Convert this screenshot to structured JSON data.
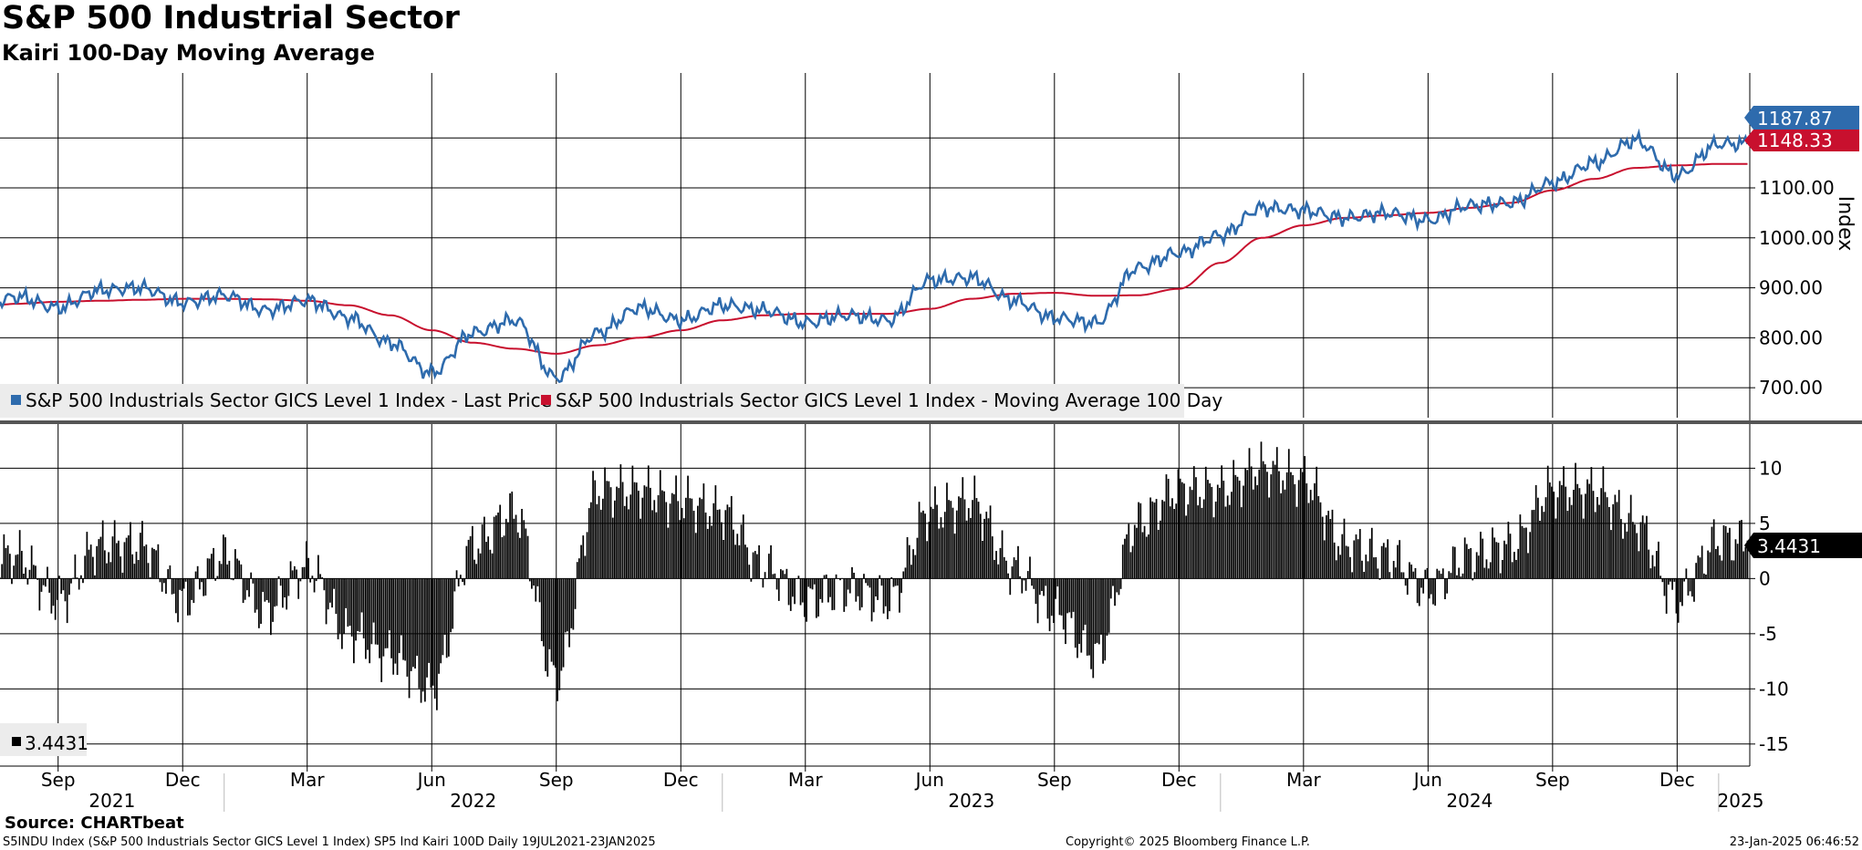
{
  "header": {
    "title": "S&P 500 Industrial Sector",
    "subtitle": "Kairi 100-Day Moving Average"
  },
  "footer": {
    "source": "Source: CHARTbeat",
    "ticker_line": "S5INDU Index (S&P 500 Industrials Sector GICS Level 1 Index) SP5 Ind Kairi 100D  Daily 19JUL2021-23JAN2025",
    "copyright": "Copyright© 2025 Bloomberg Finance L.P.",
    "timestamp": "23-Jan-2025 06:46:52"
  },
  "colors": {
    "price": "#2e6bad",
    "ma": "#c8102e",
    "kairi": "#000000",
    "grid": "#000000"
  },
  "chart_data": [
    {
      "type": "line",
      "title": "S&P 500 Industrial Sector",
      "ylabel": "Index",
      "ylim": [
        640,
        1330
      ],
      "yticks": [
        "700.00",
        "800.00",
        "900.00",
        "1000.00",
        "1100.00"
      ],
      "x_month_labels": [
        "Sep",
        "Dec",
        "Mar",
        "Jun",
        "Sep",
        "Dec",
        "Mar",
        "Jun",
        "Sep",
        "Dec",
        "Mar",
        "Jun",
        "Sep",
        "Dec"
      ],
      "x_year_labels": [
        "2021",
        "2022",
        "2023",
        "2024",
        "2025"
      ],
      "legend": [
        "S&P 500 Industrials Sector GICS Level 1 Index - Last Price",
        "S&P 500 Industrials Sector GICS Level 1 Index - Moving Average 100 Day"
      ],
      "last_values": {
        "price": "1187.87",
        "ma": "1148.33"
      },
      "x": [
        "2021-07",
        "2021-08",
        "2021-09",
        "2021-10",
        "2021-11",
        "2021-12",
        "2022-01",
        "2022-02",
        "2022-03",
        "2022-04",
        "2022-05",
        "2022-06",
        "2022-07",
        "2022-08",
        "2022-09",
        "2022-10",
        "2022-11",
        "2022-12",
        "2023-01",
        "2023-02",
        "2023-03",
        "2023-04",
        "2023-05",
        "2023-06",
        "2023-07",
        "2023-08",
        "2023-09",
        "2023-10",
        "2023-11",
        "2023-12",
        "2024-01",
        "2024-02",
        "2024-03",
        "2024-04",
        "2024-05",
        "2024-06",
        "2024-07",
        "2024-08",
        "2024-09",
        "2024-10",
        "2024-11",
        "2024-12",
        "2025-01"
      ],
      "series": [
        {
          "name": "S&P 500 Industrials Sector GICS Level 1 Index - Last Price",
          "values": [
            855,
            882,
            860,
            895,
            900,
            870,
            885,
            855,
            875,
            840,
            790,
            730,
            810,
            835,
            720,
            810,
            860,
            835,
            865,
            855,
            830,
            845,
            835,
            915,
            920,
            875,
            840,
            830,
            940,
            970,
            1005,
            1060,
            1055,
            1040,
            1050,
            1035,
            1065,
            1070,
            1110,
            1150,
            1195,
            1125,
            1188
          ]
        },
        {
          "name": "S&P 500 Industrials Sector GICS Level 1 Index - Moving Average 100 Day",
          "values": [
            860,
            868,
            872,
            874,
            876,
            878,
            878,
            877,
            874,
            865,
            845,
            815,
            790,
            778,
            768,
            785,
            800,
            815,
            835,
            845,
            848,
            848,
            848,
            858,
            878,
            888,
            890,
            884,
            885,
            898,
            950,
            1000,
            1025,
            1040,
            1045,
            1050,
            1060,
            1070,
            1095,
            1118,
            1140,
            1145,
            1148
          ]
        }
      ]
    },
    {
      "type": "bar",
      "title": "Kairi 100-Day Moving Average",
      "ylim": [
        -17,
        14
      ],
      "yticks": [
        "10",
        "5",
        "0",
        "-5",
        "-10",
        "-15"
      ],
      "last_value": "3.4431",
      "legend": [
        "3.4431"
      ],
      "x": [
        "2021-07",
        "2021-08",
        "2021-09",
        "2021-10",
        "2021-11",
        "2021-12",
        "2022-01",
        "2022-02",
        "2022-03",
        "2022-04",
        "2022-05",
        "2022-06",
        "2022-07",
        "2022-08",
        "2022-09",
        "2022-10",
        "2022-11",
        "2022-12",
        "2023-01",
        "2023-02",
        "2023-03",
        "2023-04",
        "2023-05",
        "2023-06",
        "2023-07",
        "2023-08",
        "2023-09",
        "2023-10",
        "2023-11",
        "2023-12",
        "2024-01",
        "2024-02",
        "2024-03",
        "2024-04",
        "2024-05",
        "2024-06",
        "2024-07",
        "2024-08",
        "2024-09",
        "2024-10",
        "2024-11",
        "2024-12",
        "2025-01"
      ],
      "values": [
        2,
        2,
        -2,
        3,
        3,
        -2,
        2,
        -3,
        1,
        -5,
        -7,
        -10,
        3,
        6,
        -9,
        8,
        8,
        7,
        6,
        1,
        -2,
        -1,
        -2,
        6,
        7,
        1,
        -3,
        -7,
        5,
        8,
        8,
        10,
        9,
        3,
        2,
        -1,
        2,
        3,
        8,
        8,
        5,
        -2,
        3.4431
      ]
    }
  ]
}
